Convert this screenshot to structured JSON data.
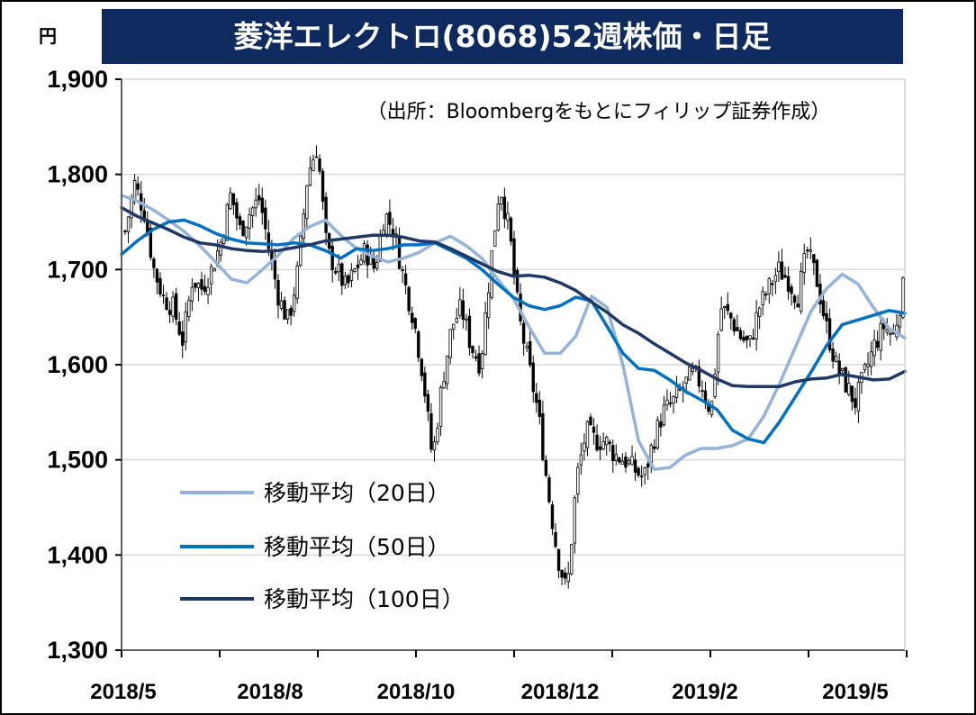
{
  "chart_data": {
    "type": "candlestick",
    "title": "菱洋エレクトロ(8068)52週株価・日足",
    "unit_label": "円",
    "source_note": "（出所：Bloombergをもとにフィリップ証券作成）",
    "ylim": [
      1300,
      1900
    ],
    "y_ticks": [
      "1,900",
      "1,800",
      "1,700",
      "1,600",
      "1,500",
      "1,400",
      "1,300"
    ],
    "y_tick_values": [
      1900,
      1800,
      1700,
      1600,
      1500,
      1400,
      1300
    ],
    "x_ticks": [
      "2018/5",
      "2018/8",
      "2018/10",
      "2018/12",
      "2019/2",
      "2019/5"
    ],
    "grid": true,
    "legend_position": "bottom-left",
    "series": [
      {
        "name": "移動平均（20日）",
        "color": "#95b3d7",
        "values": [
          1778,
          1772,
          1763,
          1752,
          1740,
          1725,
          1708,
          1690,
          1686,
          1700,
          1715,
          1733,
          1745,
          1752,
          1736,
          1722,
          1714,
          1708,
          1712,
          1718,
          1728,
          1735,
          1725,
          1712,
          1690,
          1670,
          1640,
          1612,
          1612,
          1630,
          1672,
          1660,
          1600,
          1520,
          1490,
          1492,
          1505,
          1512,
          1512,
          1515,
          1522,
          1546,
          1580,
          1618,
          1656,
          1680,
          1695,
          1685,
          1660,
          1638,
          1628
        ]
      },
      {
        "name": "移動平均（50日）",
        "color": "#0070c0",
        "values": [
          1716,
          1730,
          1742,
          1750,
          1752,
          1746,
          1738,
          1732,
          1728,
          1727,
          1726,
          1728,
          1726,
          1720,
          1712,
          1722,
          1720,
          1722,
          1726,
          1726,
          1728,
          1720,
          1712,
          1700,
          1685,
          1671,
          1662,
          1658,
          1662,
          1671,
          1667,
          1640,
          1612,
          1596,
          1594,
          1584,
          1572,
          1563,
          1553,
          1531,
          1522,
          1518,
          1540,
          1566,
          1592,
          1620,
          1642,
          1647,
          1652,
          1657,
          1654
        ]
      },
      {
        "name": "移動平均（100日）",
        "color": "#1f3864",
        "values": [
          1765,
          1756,
          1749,
          1742,
          1734,
          1728,
          1726,
          1722,
          1720,
          1719,
          1720,
          1723,
          1726,
          1730,
          1732,
          1734,
          1736,
          1736,
          1734,
          1730,
          1729,
          1722,
          1714,
          1706,
          1698,
          1693,
          1694,
          1692,
          1686,
          1678,
          1666,
          1655,
          1642,
          1633,
          1622,
          1612,
          1602,
          1594,
          1585,
          1578,
          1577,
          1577,
          1577,
          1582,
          1585,
          1586,
          1590,
          1587,
          1584,
          1585,
          1593
        ]
      }
    ],
    "price_path": [
      1740,
      1790,
      1760,
      1700,
      1670,
      1660,
      1625,
      1690,
      1680,
      1700,
      1730,
      1780,
      1740,
      1760,
      1775,
      1720,
      1670,
      1645,
      1700,
      1800,
      1830,
      1720,
      1700,
      1680,
      1700,
      1720,
      1700,
      1760,
      1740,
      1690,
      1650,
      1590,
      1500,
      1580,
      1640,
      1660,
      1620,
      1600,
      1700,
      1790,
      1740,
      1650,
      1600,
      1550,
      1470,
      1400,
      1360,
      1480,
      1530,
      1520,
      1520,
      1505,
      1500,
      1490,
      1480,
      1520,
      1550,
      1560,
      1575,
      1590,
      1580,
      1550,
      1660,
      1650,
      1630,
      1620,
      1660,
      1680,
      1700,
      1690,
      1670,
      1720,
      1690,
      1640,
      1600,
      1580,
      1560,
      1590,
      1620,
      1640,
      1630,
      1680
    ]
  }
}
